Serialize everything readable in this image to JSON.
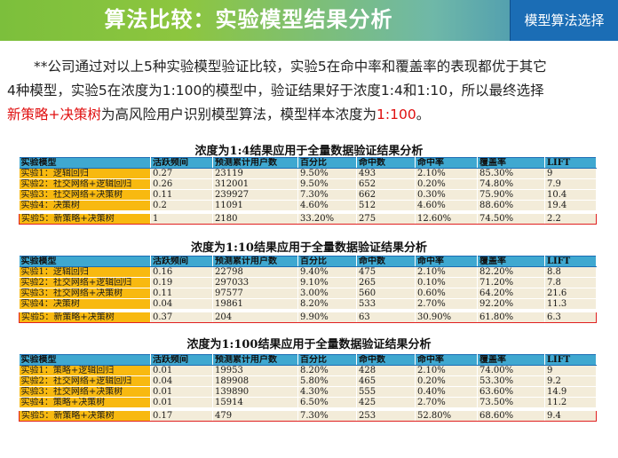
{
  "header": {
    "title": "算法比较：实验模型结果分析",
    "button_label": "模型算法选择"
  },
  "intro": {
    "line1": "**公司通过对以上5种实验模型验证比较，实验5在命中率和覆盖率的表现都优于其它",
    "line2": "4种模型，实验5在浓度为1:100的模型中，验证结果好于浓度1:4和1:10，所以最终选择",
    "line3_hl1": "新策略+决策树",
    "line3_mid": "为高风险用户识别模型算法，模型样本浓度为",
    "line3_hl2": "1:100",
    "line3_end": "。"
  },
  "columns": [
    "实验模型",
    "活跃频间",
    "预测累计用户数",
    "百分比",
    "命中数",
    "命中率",
    "覆盖率",
    "LIFT"
  ],
  "tables": [
    {
      "title": "浓度为1:4结果应用于全量数据验证结果分析",
      "rows": [
        [
          "实验1：逻辑回归",
          "0.27",
          "23119",
          "9.50%",
          "493",
          "2.10%",
          "85.30%",
          "9"
        ],
        [
          "实验2：社交网络+逻辑回归",
          "0.26",
          "312001",
          "9.50%",
          "652",
          "0.20%",
          "74.80%",
          "7.9"
        ],
        [
          "实验3：社交网络+决策树",
          "0.11",
          "239927",
          "7.30%",
          "662",
          "0.30%",
          "75.90%",
          "10.4"
        ],
        [
          "实验4：决策树",
          "0.2",
          "11091",
          "4.60%",
          "512",
          "4.60%",
          "88.60%",
          "19.4"
        ]
      ],
      "highlight": [
        "实验5：新策略+决策树",
        "1",
        "2180",
        "33.20%",
        "275",
        "12.60%",
        "74.50%",
        "2.2"
      ]
    },
    {
      "title": "浓度为1:10结果应用于全量数据验证结果分析",
      "rows": [
        [
          "实验1：逻辑回归",
          "0.16",
          "22798",
          "9.40%",
          "475",
          "2.10%",
          "82.20%",
          "8.8"
        ],
        [
          "实验2：社交网络+逻辑回归",
          "0.19",
          "297033",
          "9.10%",
          "265",
          "0.10%",
          "71.20%",
          "7.8"
        ],
        [
          "实验3：社交网络+决策树",
          "0.11",
          "97577",
          "3.00%",
          "560",
          "0.60%",
          "64.20%",
          "21.6"
        ],
        [
          "实验4：决策树",
          "0.04",
          "19861",
          "8.20%",
          "533",
          "2.70%",
          "92.20%",
          "11.3"
        ]
      ],
      "highlight": [
        "实验5：新策略+决策树",
        "0.37",
        "204",
        "9.90%",
        "63",
        "30.90%",
        "61.80%",
        "6.3"
      ]
    },
    {
      "title": "浓度为1:100结果应用于全量数据验证结果分析",
      "rows": [
        [
          "实验1：策略+逻辑回归",
          "0.01",
          "19953",
          "8.20%",
          "428",
          "2.10%",
          "74.00%",
          "9"
        ],
        [
          "实验2：社交网络+逻辑回归",
          "0.04",
          "189908",
          "5.80%",
          "465",
          "0.20%",
          "53.30%",
          "9.2"
        ],
        [
          "实验3：社交网络+决策树",
          "0.01",
          "139890",
          "4.30%",
          "555",
          "0.40%",
          "63.60%",
          "14.9"
        ],
        [
          "实验4：策略+决策树",
          "0.01",
          "15914",
          "6.50%",
          "425",
          "2.70%",
          "73.50%",
          "11.2"
        ]
      ],
      "highlight": [
        "实验5：新策略+决策树",
        "0.17",
        "479",
        "7.30%",
        "253",
        "52.80%",
        "68.60%",
        "9.4"
      ]
    }
  ]
}
